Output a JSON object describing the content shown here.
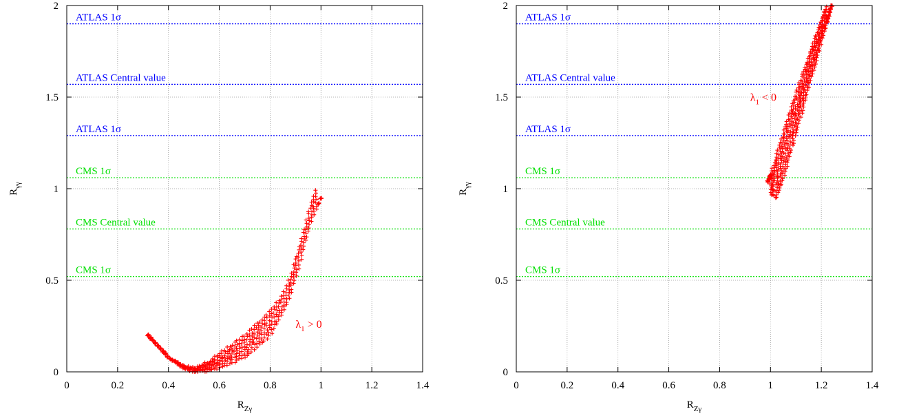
{
  "chart_data": [
    {
      "type": "scatter",
      "xlabel": "R",
      "xlabel_sub": "Zγ",
      "ylabel": "R",
      "ylabel_sub": "γγ",
      "xlim": [
        0,
        1.4
      ],
      "ylim": [
        0,
        2
      ],
      "xticks": [
        "0",
        "0.2",
        "0.4",
        "0.6",
        "0.8",
        "1",
        "1.2",
        "1.4"
      ],
      "yticks": [
        "0",
        "0.5",
        "1",
        "1.5",
        "2"
      ],
      "grid": true,
      "reference_lines": [
        {
          "label": "ATLAS 1σ",
          "y": 1.9,
          "color": "#0000ff"
        },
        {
          "label": "ATLAS Central value",
          "y": 1.57,
          "color": "#0000ff"
        },
        {
          "label": "ATLAS 1σ",
          "y": 1.29,
          "color": "#0000ff"
        },
        {
          "label": "CMS 1σ",
          "y": 1.06,
          "color": "#00e000"
        },
        {
          "label": "CMS Central value",
          "y": 0.78,
          "color": "#00e000"
        },
        {
          "label": "CMS 1σ",
          "y": 0.52,
          "color": "#00e000"
        }
      ],
      "annotation": {
        "text": "λ",
        "sub": "1",
        "rest": " > 0",
        "x": 0.9,
        "y": 0.24,
        "color": "#ff0000"
      },
      "scatter_band": {
        "color": "#ff0000",
        "lower": [
          [
            0.32,
            0.2
          ],
          [
            0.4,
            0.08
          ],
          [
            0.46,
            0.02
          ],
          [
            0.5,
            0.0
          ],
          [
            0.55,
            0.005
          ],
          [
            0.6,
            0.02
          ],
          [
            0.7,
            0.08
          ],
          [
            0.8,
            0.2
          ],
          [
            0.85,
            0.32
          ],
          [
            0.88,
            0.42
          ],
          [
            0.92,
            0.6
          ],
          [
            0.96,
            0.82
          ],
          [
            1.0,
            0.95
          ]
        ],
        "upper": [
          [
            0.32,
            0.2
          ],
          [
            0.4,
            0.08
          ],
          [
            0.46,
            0.03
          ],
          [
            0.5,
            0.02
          ],
          [
            0.55,
            0.05
          ],
          [
            0.6,
            0.1
          ],
          [
            0.7,
            0.2
          ],
          [
            0.8,
            0.33
          ],
          [
            0.85,
            0.42
          ],
          [
            0.88,
            0.52
          ],
          [
            0.92,
            0.72
          ],
          [
            0.96,
            0.92
          ],
          [
            0.99,
            1.03
          ]
        ]
      }
    },
    {
      "type": "scatter",
      "xlabel": "R",
      "xlabel_sub": "Zγ",
      "ylabel": "R",
      "ylabel_sub": "γγ",
      "xlim": [
        0,
        1.4
      ],
      "ylim": [
        0,
        2
      ],
      "xticks": [
        "0",
        "0.2",
        "0.4",
        "0.6",
        "0.8",
        "1",
        "1.2",
        "1.4"
      ],
      "yticks": [
        "0",
        "0.5",
        "1",
        "1.5",
        "2"
      ],
      "grid": true,
      "reference_lines": [
        {
          "label": "ATLAS 1σ",
          "y": 1.9,
          "color": "#0000ff"
        },
        {
          "label": "ATLAS Central value",
          "y": 1.57,
          "color": "#0000ff"
        },
        {
          "label": "ATLAS 1σ",
          "y": 1.29,
          "color": "#0000ff"
        },
        {
          "label": "CMS 1σ",
          "y": 1.06,
          "color": "#00e000"
        },
        {
          "label": "CMS Central value",
          "y": 0.78,
          "color": "#00e000"
        },
        {
          "label": "CMS 1σ",
          "y": 0.52,
          "color": "#00e000"
        }
      ],
      "annotation": {
        "text": "λ",
        "sub": "1",
        "rest": " < 0",
        "x": 0.92,
        "y": 1.48,
        "color": "#ff0000"
      },
      "scatter_band": {
        "color": "#ff0000",
        "lower": [
          [
            1.0,
            0.98
          ],
          [
            1.02,
            0.95
          ],
          [
            1.05,
            1.05
          ],
          [
            1.1,
            1.3
          ],
          [
            1.15,
            1.55
          ],
          [
            1.2,
            1.8
          ],
          [
            1.24,
            2.0
          ]
        ],
        "upper": [
          [
            0.99,
            1.04
          ],
          [
            1.01,
            1.12
          ],
          [
            1.05,
            1.3
          ],
          [
            1.1,
            1.52
          ],
          [
            1.15,
            1.72
          ],
          [
            1.2,
            1.92
          ],
          [
            1.22,
            2.0
          ]
        ]
      }
    }
  ]
}
